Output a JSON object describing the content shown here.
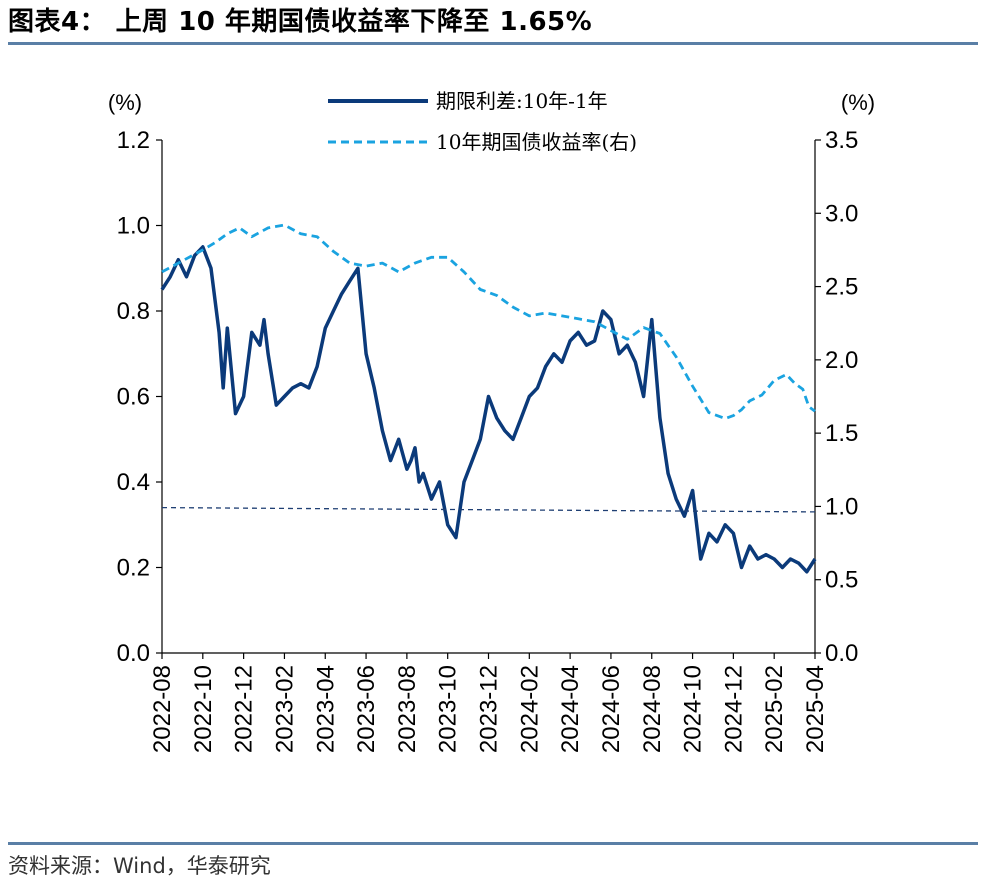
{
  "header": {
    "title": "图表4：  上周 10 年期国债收益率下降至 1.65%"
  },
  "footer": {
    "source": "资料来源：Wind，华泰研究"
  },
  "colors": {
    "spread": "#0b3a7a",
    "yield": "#1aa3e0",
    "reference": "#1f3f73",
    "rule": "#5a7fa6"
  },
  "chart_data": {
    "type": "line",
    "title": "上周 10 年期国债收益率下降至 1.65%",
    "left_unit": "(%)",
    "right_unit": "(%)",
    "left_ylim": [
      0,
      1.2
    ],
    "right_ylim": [
      0,
      3.5
    ],
    "left_ticks": [
      "0.0",
      "0.2",
      "0.4",
      "0.6",
      "0.8",
      "1.0",
      "1.2"
    ],
    "right_ticks": [
      "0.0",
      "0.5",
      "1.0",
      "1.5",
      "2.0",
      "2.5",
      "3.0",
      "3.5"
    ],
    "x_tick_labels": [
      "2022-08",
      "2022-10",
      "2022-12",
      "2023-02",
      "2023-04",
      "2023-06",
      "2023-08",
      "2023-10",
      "2023-12",
      "2024-02",
      "2024-04",
      "2024-06",
      "2024-08",
      "2024-10",
      "2024-12",
      "2025-02",
      "2025-04"
    ],
    "x_start": "2022-08",
    "x_end": "2025-04",
    "legend": [
      "期限利差:10年-1年",
      "10年期国债收益率(右)"
    ],
    "series": [
      {
        "name": "期限利差:10年-1年",
        "axis": "left",
        "style": "solid",
        "x": [
          0.0,
          0.2,
          0.4,
          0.6,
          0.8,
          1.0,
          1.2,
          1.4,
          1.5,
          1.6,
          1.8,
          2.0,
          2.2,
          2.4,
          2.5,
          2.6,
          2.8,
          3.0,
          3.2,
          3.4,
          3.6,
          3.8,
          4.0,
          4.2,
          4.4,
          4.6,
          4.8,
          5.0,
          5.2,
          5.4,
          5.6,
          5.8,
          6.0,
          6.1,
          6.2,
          6.3,
          6.4,
          6.6,
          6.8,
          7.0,
          7.2,
          7.4,
          7.6,
          7.8,
          8.0,
          8.2,
          8.4,
          8.6,
          8.8,
          9.0,
          9.2,
          9.4,
          9.6,
          9.8,
          10.0,
          10.2,
          10.4,
          10.6,
          10.8,
          11.0,
          11.2,
          11.4,
          11.6,
          11.8,
          12.0,
          12.2,
          12.4,
          12.6,
          12.8,
          13.0,
          13.2,
          13.4,
          13.6,
          13.8,
          14.0,
          14.2,
          14.4,
          14.6,
          14.8,
          15.0,
          15.2,
          15.4,
          15.6,
          15.8,
          16.0
        ],
        "values": [
          0.85,
          0.88,
          0.92,
          0.88,
          0.93,
          0.95,
          0.9,
          0.75,
          0.62,
          0.76,
          0.56,
          0.6,
          0.75,
          0.72,
          0.78,
          0.7,
          0.58,
          0.6,
          0.62,
          0.63,
          0.62,
          0.67,
          0.76,
          0.8,
          0.84,
          0.87,
          0.9,
          0.7,
          0.62,
          0.52,
          0.45,
          0.5,
          0.43,
          0.45,
          0.48,
          0.4,
          0.42,
          0.36,
          0.4,
          0.3,
          0.27,
          0.4,
          0.45,
          0.5,
          0.6,
          0.55,
          0.52,
          0.5,
          0.55,
          0.6,
          0.62,
          0.67,
          0.7,
          0.68,
          0.73,
          0.75,
          0.72,
          0.73,
          0.8,
          0.78,
          0.7,
          0.72,
          0.68,
          0.6,
          0.78,
          0.55,
          0.42,
          0.36,
          0.32,
          0.38,
          0.22,
          0.28,
          0.26,
          0.3,
          0.28,
          0.2,
          0.25,
          0.22,
          0.23,
          0.22,
          0.2,
          0.22,
          0.21,
          0.19,
          0.22
        ]
      },
      {
        "name": "10年期国债收益率(右)",
        "axis": "right",
        "style": "dashed",
        "x": [
          0.0,
          0.4,
          0.8,
          1.0,
          1.3,
          1.6,
          1.9,
          2.2,
          2.6,
          3.0,
          3.4,
          3.8,
          4.2,
          4.6,
          5.0,
          5.4,
          5.8,
          6.2,
          6.6,
          7.0,
          7.4,
          7.8,
          8.2,
          8.6,
          9.0,
          9.4,
          9.8,
          10.2,
          10.6,
          11.0,
          11.4,
          11.8,
          12.2,
          12.6,
          13.0,
          13.4,
          13.8,
          14.0,
          14.2,
          14.4,
          14.7,
          15.0,
          15.3,
          15.5,
          15.7,
          15.85,
          16.0
        ],
        "values": [
          2.6,
          2.66,
          2.72,
          2.75,
          2.8,
          2.86,
          2.9,
          2.84,
          2.9,
          2.92,
          2.86,
          2.84,
          2.74,
          2.66,
          2.64,
          2.66,
          2.6,
          2.66,
          2.7,
          2.7,
          2.6,
          2.48,
          2.44,
          2.36,
          2.3,
          2.32,
          2.3,
          2.28,
          2.26,
          2.2,
          2.14,
          2.22,
          2.18,
          2.02,
          1.82,
          1.64,
          1.6,
          1.62,
          1.66,
          1.72,
          1.76,
          1.86,
          1.9,
          1.84,
          1.8,
          1.68,
          1.65
        ]
      },
      {
        "name": "reference",
        "axis": "left",
        "style": "dotted",
        "x": [
          0.0,
          16.0
        ],
        "values": [
          0.34,
          0.33
        ]
      }
    ]
  }
}
